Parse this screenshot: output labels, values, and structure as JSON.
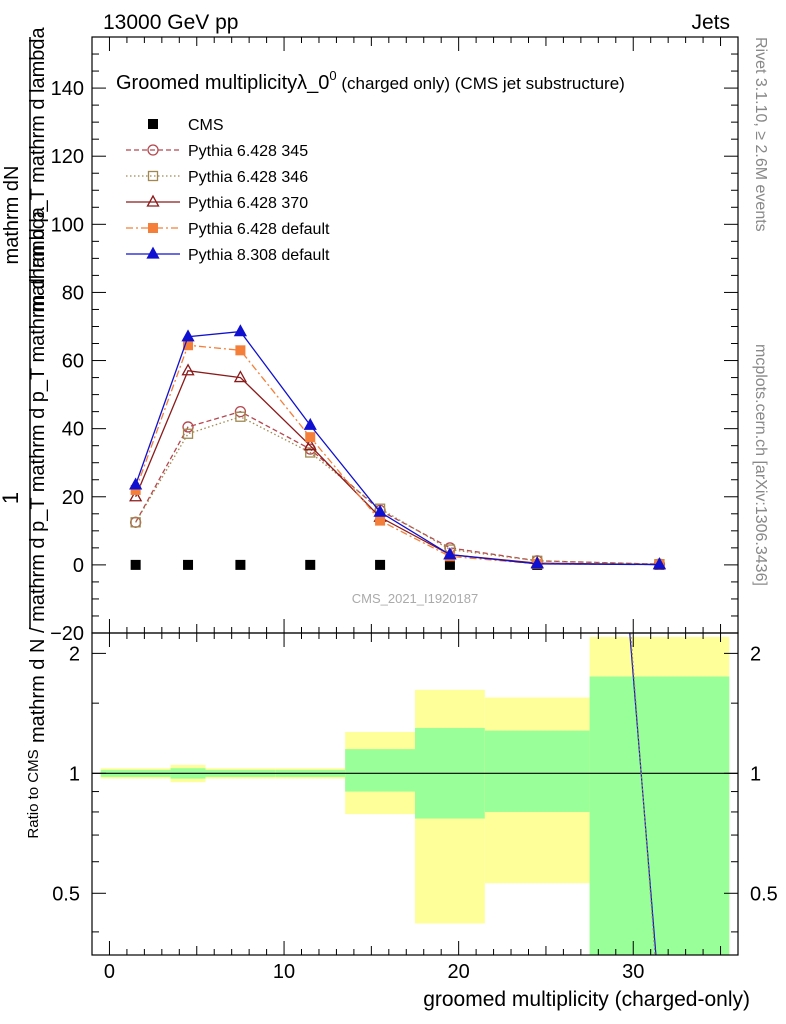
{
  "header": {
    "left": "13000 GeV pp",
    "right": "Jets"
  },
  "side_labels": {
    "rivet": "Rivet 3.1.10, ≥ 2.6M events",
    "mcplots": "mcplots.cern.ch [arXiv:1306.3436]"
  },
  "watermark": "CMS_2021_I1920187",
  "chart_data": [
    {
      "type": "line",
      "title_main": "Groomed multiplicityλ_0",
      "title_sup": "0",
      "title_tail": " (charged only) (CMS jet substructure)",
      "ylabel_num": "mathrm dN",
      "ylabel_den": "mathrm d p_T mathrm d lambda",
      "ylabel_one": "1",
      "ylabel_den2": "mathrm d N / mathrm d p_T mathrm d p_T mathrm d lambda",
      "xlim": [
        -1,
        36
      ],
      "ylim": [
        -20,
        155
      ],
      "yticks": [
        -20,
        0,
        20,
        40,
        60,
        80,
        100,
        120,
        140
      ],
      "ytick_labels": [
        "−20",
        "0",
        "20",
        "40",
        "60",
        "80",
        "100",
        "120",
        "140"
      ],
      "grid": false,
      "legend_position": "top-left",
      "series": [
        {
          "name": "CMS",
          "color": "#000000",
          "marker": "square-filled",
          "line": "none",
          "x": [
            1.5,
            4.5,
            7.5,
            11.5,
            15.5,
            19.5,
            24.5,
            31.5
          ],
          "y": [
            0,
            0,
            0,
            0,
            0,
            0,
            0,
            0
          ]
        },
        {
          "name": "Pythia 6.428 345",
          "color": "#b5474f",
          "marker": "circle-open",
          "line": "dashed",
          "x": [
            1.5,
            4.5,
            7.5,
            11.5,
            15.5,
            19.5,
            24.5,
            31.5
          ],
          "y": [
            12.5,
            40.5,
            45,
            34,
            16,
            5,
            1.2,
            0.2
          ]
        },
        {
          "name": "Pythia 6.428 346",
          "color": "#a08850",
          "marker": "square-open",
          "line": "dotted",
          "x": [
            1.5,
            4.5,
            7.5,
            11.5,
            15.5,
            19.5,
            24.5,
            31.5
          ],
          "y": [
            12.5,
            38.5,
            43.5,
            33,
            16.5,
            4.5,
            1.2,
            0.2
          ]
        },
        {
          "name": "Pythia 6.428 370",
          "color": "#8b1a1a",
          "marker": "triangle-open",
          "line": "solid",
          "x": [
            1.5,
            4.5,
            7.5,
            11.5,
            15.5,
            19.5,
            24.5,
            31.5
          ],
          "y": [
            20,
            57,
            55,
            35,
            14,
            3,
            0.5,
            0.1
          ]
        },
        {
          "name": "Pythia 6.428 default",
          "color": "#f47f3a",
          "marker": "square-filled",
          "line": "dashdot",
          "x": [
            1.5,
            4.5,
            7.5,
            11.5,
            15.5,
            19.5,
            24.5,
            31.5
          ],
          "y": [
            22,
            64.5,
            63,
            37.5,
            13,
            2.5,
            0.3,
            0.1
          ]
        },
        {
          "name": "Pythia 8.308 default",
          "color": "#1010d0",
          "marker": "triangle-filled",
          "line": "solid",
          "x": [
            1.5,
            4.5,
            7.5,
            11.5,
            15.5,
            19.5,
            24.5,
            31.5
          ],
          "y": [
            23.5,
            67,
            68.5,
            41,
            15.5,
            3,
            0.3,
            0.1
          ]
        }
      ]
    },
    {
      "type": "ratio",
      "ylabel": "Ratio to CMS",
      "xlabel": "groomed multiplicity (charged-only)",
      "xlim": [
        -1,
        36
      ],
      "ylim": [
        0.35,
        2.25
      ],
      "xticks": [
        0,
        10,
        20,
        30
      ],
      "xtick_labels": [
        "0",
        "10",
        "20",
        "30"
      ],
      "yticks": [
        0.5,
        1,
        2
      ],
      "ytick_labels": [
        "0.5",
        "1",
        "2"
      ],
      "bands": [
        {
          "x0": -0.5,
          "x1": 3.5,
          "green": [
            0.98,
            1.02
          ],
          "yellow": [
            0.97,
            1.03
          ]
        },
        {
          "x0": 3.5,
          "x1": 5.5,
          "green": [
            0.97,
            1.03
          ],
          "yellow": [
            0.95,
            1.05
          ]
        },
        {
          "x0": 5.5,
          "x1": 9.5,
          "green": [
            0.98,
            1.02
          ],
          "yellow": [
            0.97,
            1.03
          ]
        },
        {
          "x0": 9.5,
          "x1": 13.5,
          "green": [
            0.98,
            1.02
          ],
          "yellow": [
            0.97,
            1.03
          ]
        },
        {
          "x0": 13.5,
          "x1": 17.5,
          "green": [
            0.9,
            1.15
          ],
          "yellow": [
            0.79,
            1.27
          ]
        },
        {
          "x0": 17.5,
          "x1": 21.5,
          "green": [
            0.77,
            1.3
          ],
          "yellow": [
            0.42,
            1.62
          ]
        },
        {
          "x0": 21.5,
          "x1": 27.5,
          "green": [
            0.8,
            1.28
          ],
          "yellow": [
            0.53,
            1.55
          ]
        },
        {
          "x0": 27.5,
          "x1": 35.5,
          "green": [
            0.35,
            1.75
          ],
          "yellow": [
            0.35,
            2.2
          ]
        }
      ],
      "lines": [
        {
          "name": "Pythia 8.308 default",
          "color": "#1010d0",
          "x": [
            29.8,
            31.3
          ],
          "y": [
            2.25,
            0.35
          ]
        },
        {
          "name": "Pythia 6.428 346",
          "color": "#a08850",
          "x": [
            29.85,
            31.25
          ],
          "y": [
            2.25,
            0.35
          ]
        }
      ]
    }
  ]
}
